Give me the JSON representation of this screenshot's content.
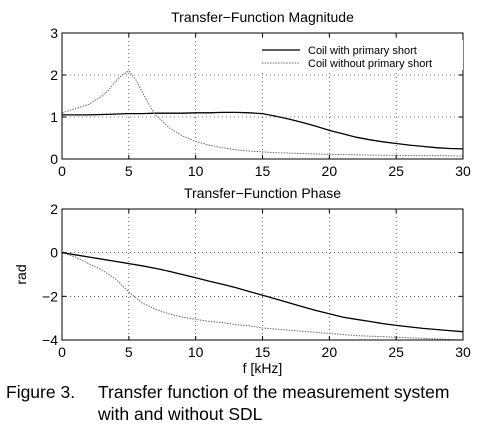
{
  "chart_data": [
    {
      "type": "line",
      "title": "Transfer−Function Magnitude",
      "xlabel": "",
      "ylabel": "",
      "xlim": [
        0,
        30
      ],
      "ylim": [
        0,
        3
      ],
      "xticks": [
        "0",
        "5",
        "10",
        "15",
        "20",
        "25",
        "30"
      ],
      "yticks": [
        "0",
        "1",
        "2",
        "3"
      ],
      "grid": true,
      "legend_position": "top-right",
      "series": [
        {
          "name": "Coil with primary short",
          "style": "solid",
          "x": [
            0,
            1,
            2,
            3,
            4,
            5,
            6,
            7,
            8,
            9,
            10,
            11,
            12,
            13,
            14,
            15,
            16,
            17,
            18,
            19,
            20,
            21,
            22,
            23,
            24,
            25,
            26,
            27,
            28,
            29,
            30
          ],
          "y": [
            1.05,
            1.05,
            1.05,
            1.06,
            1.07,
            1.08,
            1.08,
            1.09,
            1.09,
            1.09,
            1.1,
            1.1,
            1.11,
            1.11,
            1.1,
            1.08,
            1.02,
            0.95,
            0.87,
            0.78,
            0.68,
            0.6,
            0.52,
            0.46,
            0.41,
            0.37,
            0.33,
            0.3,
            0.27,
            0.25,
            0.24
          ]
        },
        {
          "name": "Coil without primary short",
          "style": "dotted",
          "x": [
            0,
            0.5,
            1,
            1.5,
            2,
            2.5,
            3,
            3.5,
            4,
            4.5,
            5,
            5.5,
            6,
            6.5,
            7,
            8,
            9,
            10,
            11,
            12,
            13,
            14,
            15,
            16,
            17,
            18,
            19,
            20,
            22,
            24,
            26,
            28,
            30
          ],
          "y": [
            1.1,
            1.15,
            1.2,
            1.25,
            1.3,
            1.4,
            1.5,
            1.65,
            1.85,
            2.0,
            2.1,
            1.9,
            1.6,
            1.3,
            1.05,
            0.75,
            0.55,
            0.42,
            0.33,
            0.27,
            0.22,
            0.19,
            0.17,
            0.15,
            0.14,
            0.13,
            0.12,
            0.11,
            0.1,
            0.09,
            0.08,
            0.08,
            0.07
          ]
        }
      ]
    },
    {
      "type": "line",
      "title": "Transfer−Function Phase",
      "xlabel": "f [kHz]",
      "ylabel": "rad",
      "xlim": [
        0,
        30
      ],
      "ylim": [
        -4,
        2
      ],
      "xticks": [
        "0",
        "5",
        "10",
        "15",
        "20",
        "25",
        "30"
      ],
      "yticks": [
        "−4",
        "−2",
        "0",
        "2"
      ],
      "grid": true,
      "series": [
        {
          "name": "Coil with primary short",
          "style": "solid",
          "x": [
            0,
            1,
            2,
            3,
            4,
            5,
            6,
            7,
            8,
            9,
            10,
            11,
            12,
            13,
            14,
            15,
            16,
            17,
            18,
            19,
            20,
            21,
            22,
            23,
            24,
            25,
            26,
            27,
            28,
            29,
            30
          ],
          "y": [
            0.0,
            -0.1,
            -0.2,
            -0.3,
            -0.4,
            -0.5,
            -0.6,
            -0.72,
            -0.85,
            -1.0,
            -1.15,
            -1.3,
            -1.45,
            -1.6,
            -1.78,
            -1.95,
            -2.12,
            -2.3,
            -2.48,
            -2.65,
            -2.8,
            -2.95,
            -3.05,
            -3.15,
            -3.25,
            -3.33,
            -3.4,
            -3.47,
            -3.52,
            -3.57,
            -3.62
          ]
        },
        {
          "name": "Coil without primary short",
          "style": "dotted",
          "x": [
            0,
            1,
            2,
            3,
            4,
            5,
            6,
            7,
            8,
            9,
            10,
            11,
            12,
            13,
            14,
            15,
            16,
            17,
            18,
            19,
            20,
            22,
            24,
            26,
            28,
            30
          ],
          "y": [
            0.0,
            -0.2,
            -0.5,
            -0.8,
            -1.2,
            -1.8,
            -2.3,
            -2.6,
            -2.8,
            -2.95,
            -3.05,
            -3.15,
            -3.2,
            -3.3,
            -3.35,
            -3.45,
            -3.5,
            -3.55,
            -3.6,
            -3.65,
            -3.7,
            -3.8,
            -3.85,
            -3.9,
            -3.95,
            -4.0
          ]
        }
      ]
    }
  ],
  "caption": {
    "number": "Figure 3.",
    "line1": "Transfer function of the measurement system",
    "line2": "with and without SDL"
  }
}
